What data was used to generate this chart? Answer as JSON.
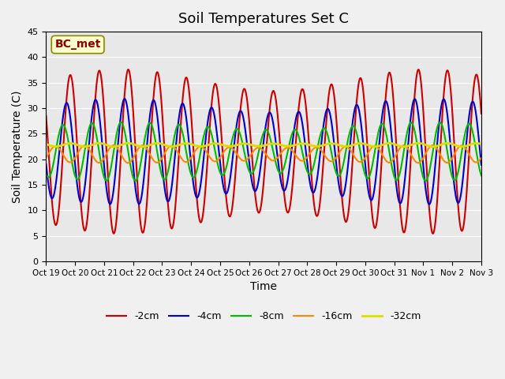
{
  "title": "Soil Temperatures Set C",
  "xlabel": "Time",
  "ylabel": "Soil Temperature (C)",
  "ylim": [
    0,
    45
  ],
  "yticks": [
    0,
    5,
    10,
    15,
    20,
    25,
    30,
    35,
    40,
    45
  ],
  "xtick_labels": [
    "Oct 19",
    "Oct 20",
    "Oct 21",
    "Oct 22",
    "Oct 23",
    "Oct 24",
    "Oct 25",
    "Oct 26",
    "Oct 27",
    "Oct 28",
    "Oct 29",
    "Oct 30",
    "Oct 31",
    "Nov 1",
    "Nov 2",
    "Nov 3"
  ],
  "series_labels": [
    "-2cm",
    "-4cm",
    "-8cm",
    "-16cm",
    "-32cm"
  ],
  "series_colors": [
    "#cc0000",
    "#0000cc",
    "#00bb00",
    "#ff8800",
    "#dddd00"
  ],
  "series_linewidths": [
    1.5,
    1.5,
    1.5,
    1.5,
    2.0
  ],
  "annotation_text": "BC_met",
  "annotation_fontsize": 10,
  "title_fontsize": 13,
  "axis_fontsize": 10,
  "legend_fontsize": 9,
  "n_points": 3360,
  "days": 15,
  "mean_2cm": 21.5,
  "amp_2cm": 14.0,
  "mean_4cm": 21.5,
  "amp_4cm": 9.0,
  "mean_8cm": 21.5,
  "amp_8cm": 5.0,
  "mean_16cm": 21.0,
  "amp_16cm": 1.5,
  "mean_32cm": 22.8,
  "amp_32cm": 0.3,
  "phase_2cm": 0.0,
  "phase_4cm": 0.8,
  "phase_8cm": 1.6,
  "phase_16cm": 3.2,
  "phase_32cm": 0.0
}
